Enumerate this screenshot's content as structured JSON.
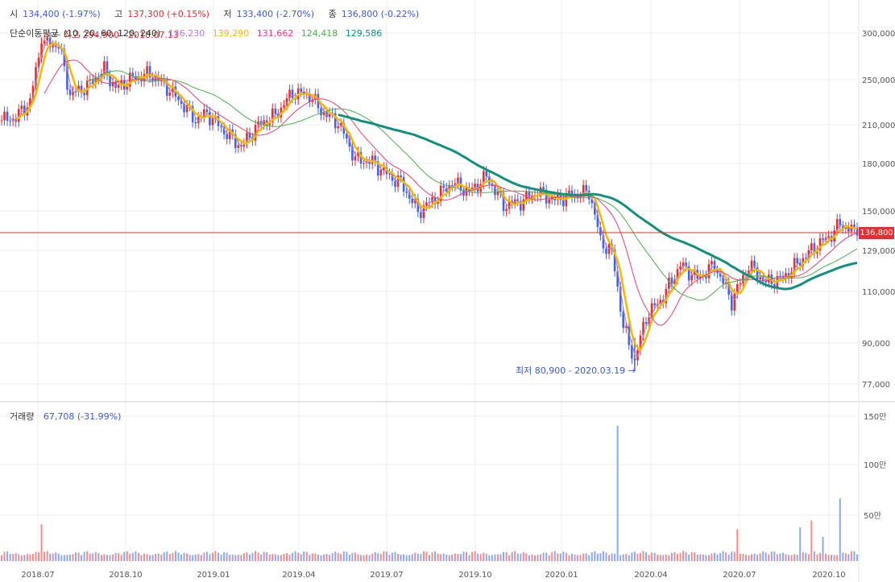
{
  "header": {
    "open_label": "시",
    "open_value": "134,400 (-1.97%)",
    "high_label": "고",
    "high_value": "137,300 (+0.15%)",
    "low_label": "저",
    "low_value": "133,400 (-2.70%)",
    "close_label": "종",
    "close_value": "136,800 (-0.22%)"
  },
  "ma_legend": {
    "label": "단순이동평균",
    "periods": "(10, 20, 60, 120, 240)",
    "values": [
      {
        "text": "136,230",
        "color": "#b27ddb"
      },
      {
        "text": "139,290",
        "color": "#f5b800"
      },
      {
        "text": "131,662",
        "color": "#e8407a"
      },
      {
        "text": "124,418",
        "color": "#4caf50"
      },
      {
        "text": "129,586",
        "color": "#11907f"
      }
    ]
  },
  "volume_header": {
    "label": "거래량",
    "value": "67,708 (-31.99%)"
  },
  "current_price_tag": "136,800",
  "colors": {
    "up": "#e03131",
    "down": "#4263eb",
    "ma10": "#b27ddb",
    "ma20": "#f5b800",
    "ma60": "#e8407a",
    "ma120": "#4caf50",
    "ma240": "#11907f",
    "grid": "#eeeeee"
  },
  "chart_data": {
    "type": "candlestick",
    "price_axis_ticks": [
      "300,000",
      "250,000",
      "210,000",
      "180,000",
      "150,000",
      "129,000",
      "110,000",
      "90,000",
      "77,000"
    ],
    "volume_axis_ticks": [
      "150만",
      "100만",
      "50만"
    ],
    "x_tick_labels": [
      "2018.07",
      "2018.10",
      "2019.01",
      "2019.04",
      "2019.07",
      "2019.10",
      "2020.01",
      "2020.04",
      "2020.07",
      "2020.10"
    ],
    "annotations": {
      "high": "최고 294,900 - 2018.07.13",
      "low": "최저 80,900 - 2020.03.19"
    },
    "last_close": 136800,
    "closes": [
      [
        0,
        214000
      ],
      [
        5,
        216000
      ],
      [
        10,
        230000
      ],
      [
        14,
        288000
      ],
      [
        20,
        286000
      ],
      [
        24,
        236000
      ],
      [
        30,
        244000
      ],
      [
        36,
        260000
      ],
      [
        40,
        242000
      ],
      [
        46,
        252000
      ],
      [
        52,
        256000
      ],
      [
        58,
        243000
      ],
      [
        64,
        226000
      ],
      [
        68,
        214000
      ],
      [
        72,
        220000
      ],
      [
        78,
        205000
      ],
      [
        84,
        193000
      ],
      [
        90,
        210000
      ],
      [
        96,
        218000
      ],
      [
        102,
        238000
      ],
      [
        108,
        236000
      ],
      [
        112,
        222000
      ],
      [
        118,
        212000
      ],
      [
        124,
        184000
      ],
      [
        130,
        182000
      ],
      [
        136,
        172000
      ],
      [
        140,
        168000
      ],
      [
        146,
        150000
      ],
      [
        152,
        158000
      ],
      [
        158,
        168000
      ],
      [
        164,
        162000
      ],
      [
        170,
        172000
      ],
      [
        176,
        154000
      ],
      [
        182,
        156000
      ],
      [
        188,
        162000
      ],
      [
        194,
        157000
      ],
      [
        200,
        160000
      ],
      [
        206,
        162000
      ],
      [
        210,
        134000
      ],
      [
        214,
        128000
      ],
      [
        218,
        96000
      ],
      [
        222,
        84000
      ],
      [
        226,
        100000
      ],
      [
        232,
        108000
      ],
      [
        238,
        122000
      ],
      [
        244,
        116000
      ],
      [
        250,
        122000
      ],
      [
        256,
        106000
      ],
      [
        262,
        122000
      ],
      [
        268,
        114000
      ],
      [
        274,
        116000
      ],
      [
        280,
        124000
      ],
      [
        286,
        132000
      ],
      [
        290,
        136000
      ],
      [
        294,
        143000
      ],
      [
        298,
        140000
      ],
      [
        300,
        136800
      ]
    ],
    "ma_series": [
      {
        "name": "10",
        "color": "#b27ddb"
      },
      {
        "name": "20",
        "color": "#f5b800"
      },
      {
        "name": "60",
        "color": "#e8407a"
      },
      {
        "name": "120",
        "color": "#4caf50"
      },
      {
        "name": "240",
        "color": "#11907f"
      }
    ],
    "volumes_peak": [
      [
        14,
        380000
      ],
      [
        216,
        1400000
      ],
      [
        258,
        330000
      ],
      [
        280,
        350000
      ],
      [
        284,
        420000
      ],
      [
        288,
        250000
      ],
      [
        294,
        650000
      ]
    ]
  }
}
